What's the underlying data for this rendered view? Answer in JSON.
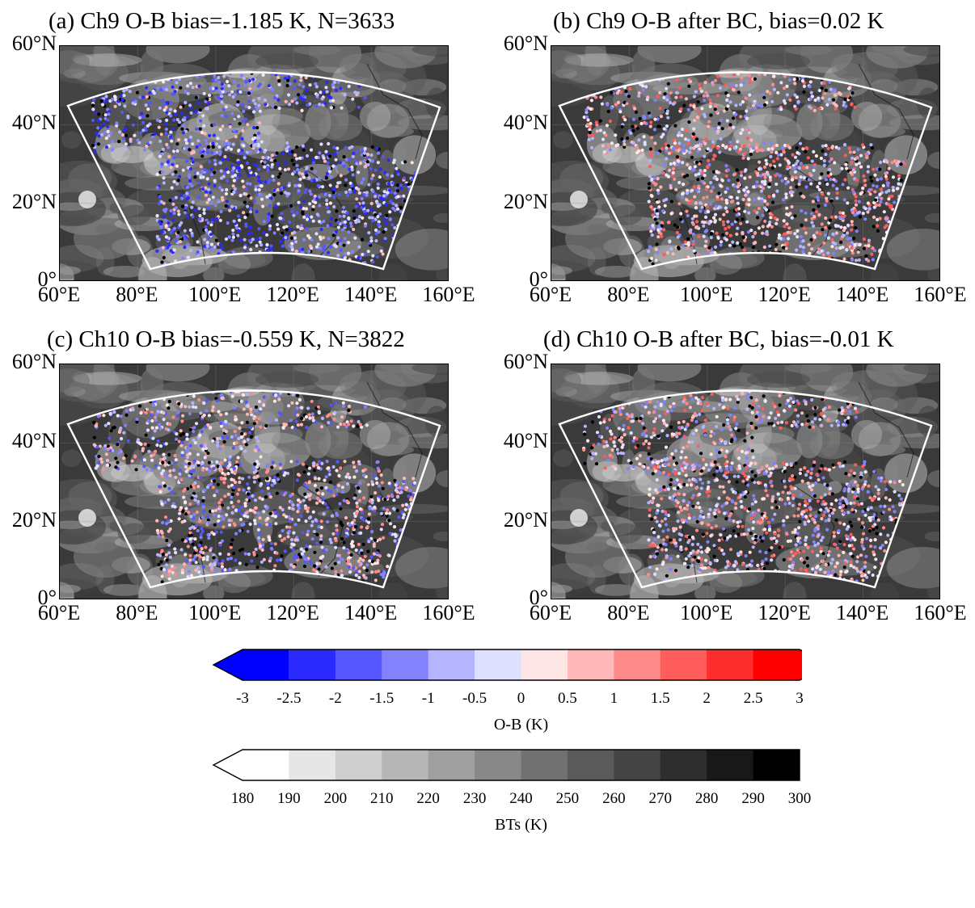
{
  "panels": [
    {
      "id": "a",
      "title": "(a) Ch9 O-B bias=-1.185 K, N=3633",
      "channel": "Ch9",
      "stage": "before_bc",
      "bias_K": -1.185,
      "N": 3633,
      "dominant_color": "negative"
    },
    {
      "id": "b",
      "title": "(b) Ch9 O-B after BC, bias=0.02 K",
      "channel": "Ch9",
      "stage": "after_bc",
      "bias_K": 0.02,
      "dominant_color": "mixed"
    },
    {
      "id": "c",
      "title": "(c) Ch10 O-B bias=-0.559 K, N=3822",
      "channel": "Ch10",
      "stage": "before_bc",
      "bias_K": -0.559,
      "N": 3822,
      "dominant_color": "mixed-negative"
    },
    {
      "id": "d",
      "title": "(d) Ch10 O-B after BC, bias=-0.01 K",
      "channel": "Ch10",
      "stage": "after_bc",
      "bias_K": -0.01,
      "dominant_color": "mixed"
    }
  ],
  "axes": {
    "lat_labels": [
      "60°N",
      "40°N",
      "20°N",
      "0°"
    ],
    "lon_labels": [
      "60°E",
      "80°E",
      "100°E",
      "120°E",
      "140°E",
      "160°E"
    ],
    "lon_range": [
      60,
      160
    ],
    "lat_range": [
      0,
      60
    ]
  },
  "colorbars": {
    "ob": {
      "title": "O-B (K)",
      "ticks": [
        "-3",
        "-2.5",
        "-2",
        "-1.5",
        "-1",
        "-0.5",
        "0",
        "0.5",
        "1",
        "1.5",
        "2",
        "2.5",
        "3"
      ],
      "colors": [
        "#0000ff",
        "#2a2aff",
        "#5656ff",
        "#8282ff",
        "#b4b4ff",
        "#e0e0ff",
        "#ffe6e6",
        "#ffb8b8",
        "#ff8a8a",
        "#ff5c5c",
        "#ff2e2e",
        "#ff0000"
      ],
      "extend": "both"
    },
    "bt": {
      "title": "BTs (K)",
      "ticks": [
        "180",
        "190",
        "200",
        "210",
        "220",
        "230",
        "240",
        "250",
        "260",
        "270",
        "280",
        "290",
        "300"
      ],
      "colors": [
        "#ffffff",
        "#e6e6e6",
        "#cfcfcf",
        "#b6b6b6",
        "#9f9f9f",
        "#888888",
        "#717171",
        "#5a5a5a",
        "#444444",
        "#2e2e2e",
        "#181818",
        "#000000"
      ],
      "extend": "min"
    }
  }
}
